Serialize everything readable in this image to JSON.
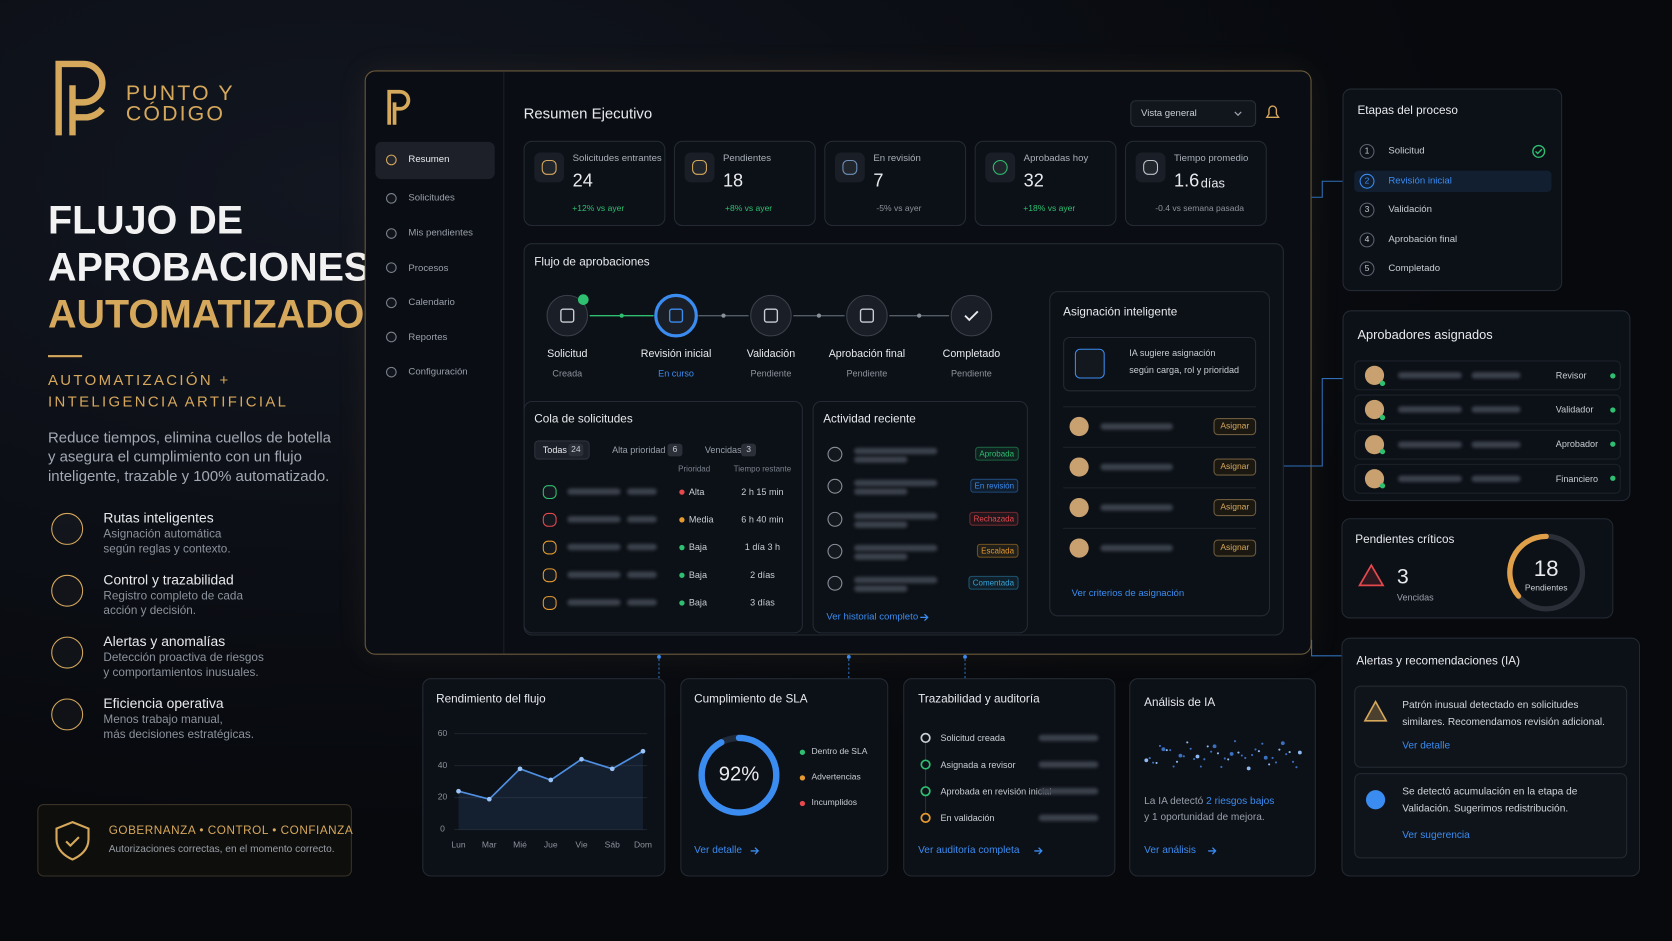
{
  "brand": {
    "line1": "PUNTO Y",
    "line2": "CÓDIGO"
  },
  "hero": {
    "title_lines": [
      "FLUJO DE",
      "APROBACIONES",
      "AUTOMATIZADO"
    ],
    "subtitle_lines": [
      "AUTOMATIZACIÓN +",
      "INTELIGENCIA ARTIFICIAL"
    ],
    "description_lines": [
      "Reduce tiempos, elimina cuellos de botella",
      "y asegura el cumplimiento con un flujo",
      "inteligente, trazable y 100% automatizado."
    ]
  },
  "features": [
    {
      "title": "Rutas inteligentes",
      "desc_lines": [
        "Asignación automática",
        "según reglas y contexto."
      ]
    },
    {
      "title": "Control y trazabilidad",
      "desc_lines": [
        "Registro completo de cada",
        "acción y decisión."
      ]
    },
    {
      "title": "Alertas y anomalías",
      "desc_lines": [
        "Detección proactiva de riesgos",
        "y comportamientos inusuales."
      ]
    },
    {
      "title": "Eficiencia operativa",
      "desc_lines": [
        "Menos trabajo manual,",
        "más decisiones estratégicas."
      ]
    }
  ],
  "governance": {
    "title": "GOBERNANZA • CONTROL • CONFIANZA",
    "text": "Autorizaciones correctas, en el momento correcto."
  },
  "sidebar": [
    "Resumen",
    "Solicitudes",
    "Mis pendientes",
    "Procesos",
    "Calendario",
    "Reportes",
    "Configuración"
  ],
  "header": {
    "title": "Resumen Ejecutivo",
    "view": "Vista general"
  },
  "kpis": [
    {
      "label": "Solicitudes entrantes",
      "value": "24",
      "delta": "+12% vs ayer"
    },
    {
      "label": "Pendientes",
      "value": "18",
      "delta": "+8% vs ayer"
    },
    {
      "label": "En revisión",
      "value": "7",
      "delta": "-5% vs ayer"
    },
    {
      "label": "Aprobadas hoy",
      "value": "32",
      "delta": "+18% vs ayer"
    },
    {
      "label": "Tiempo promedio",
      "value": "1.6",
      "unit": "días",
      "delta": "-0.4 vs semana pasada"
    }
  ],
  "flow": {
    "title": "Flujo de aprobaciones",
    "steps": [
      {
        "name": "Solicitud",
        "status": "Creada"
      },
      {
        "name": "Revisión inicial",
        "status": "En curso"
      },
      {
        "name": "Validación",
        "status": "Pendiente"
      },
      {
        "name": "Aprobación final",
        "status": "Pendiente"
      },
      {
        "name": "Completado",
        "status": "Pendiente"
      }
    ]
  },
  "queue": {
    "title": "Cola de solicitudes",
    "tabs": [
      {
        "label": "Todas",
        "count": "24"
      },
      {
        "label": "Alta prioridad",
        "count": "6"
      },
      {
        "label": "Vencidas",
        "count": "3"
      }
    ],
    "headers": [
      "Prioridad",
      "Tiempo restante"
    ],
    "rows": [
      {
        "priority": "Alta",
        "time": "2 h 15 min"
      },
      {
        "priority": "Media",
        "time": "6 h 40 min"
      },
      {
        "priority": "Baja",
        "time": "1 día 3 h"
      },
      {
        "priority": "Baja",
        "time": "2 días"
      },
      {
        "priority": "Baja",
        "time": "3 días"
      }
    ]
  },
  "activity": {
    "title": "Actividad reciente",
    "badges": [
      "Aprobada",
      "En revisión",
      "Rechazada",
      "Escalada",
      "Comentada"
    ],
    "link": "Ver historial completo"
  },
  "assign": {
    "title": "Asignación inteligente",
    "ai_lines": [
      "IA sugiere asignación",
      "según carga, rol y prioridad"
    ],
    "button": "Asignar",
    "link": "Ver criterios de asignación"
  },
  "stages": {
    "title": "Etapas del proceso",
    "items": [
      {
        "n": "1",
        "label": "Solicitud"
      },
      {
        "n": "2",
        "label": "Revisión inicial"
      },
      {
        "n": "3",
        "label": "Validación"
      },
      {
        "n": "4",
        "label": "Aprobación final"
      },
      {
        "n": "5",
        "label": "Completado"
      }
    ]
  },
  "approvers": {
    "title": "Aprobadores asignados",
    "roles": [
      "Revisor",
      "Validador",
      "Aprobador",
      "Financiero"
    ]
  },
  "critical": {
    "title": "Pendientes críticos",
    "overdue": "3",
    "overdue_label": "Vencidas",
    "pending": "18",
    "pending_label": "Pendientes"
  },
  "alerts": {
    "title": "Alertas y recomendaciones (IA)",
    "items": [
      {
        "lines": [
          "Patrón inusual detectado en solicitudes",
          "similares. Recomendamos revisión adicional."
        ],
        "link": "Ver detalle"
      },
      {
        "lines": [
          "Se detectó acumulación en la etapa de",
          "Validación. Sugerimos redistribución."
        ],
        "link": "Ver sugerencia"
      }
    ]
  },
  "performance": {
    "title": "Rendimiento del flujo",
    "type": "line",
    "categories": [
      "Lun",
      "Mar",
      "Mié",
      "Jue",
      "Vie",
      "Sáb",
      "Dom"
    ],
    "values": [
      24,
      19,
      38,
      31,
      44,
      38,
      49
    ],
    "ylim": [
      0,
      60
    ],
    "yticks": [
      0,
      20,
      40,
      60
    ],
    "color": "#4f8fe0"
  },
  "sla": {
    "title": "Cumplimiento de SLA",
    "percent": {
      "value": 92,
      "label": "92%"
    },
    "legend": [
      "Dentro de SLA",
      "Advertencias",
      "Incumplidos"
    ],
    "link": "Ver detalle"
  },
  "audit": {
    "title": "Trazabilidad y auditoría",
    "events": [
      "Solicitud creada",
      "Asignada a revisor",
      "Aprobada en revisión inicial",
      "En validación"
    ],
    "link": "Ver auditoría completa"
  },
  "ai_analysis": {
    "title": "Análisis de IA",
    "text_parts": [
      "La IA detectó ",
      "2 riesgos bajos"
    ],
    "text_line2": "y 1 oportunidad de mejora.",
    "link": "Ver análisis"
  }
}
